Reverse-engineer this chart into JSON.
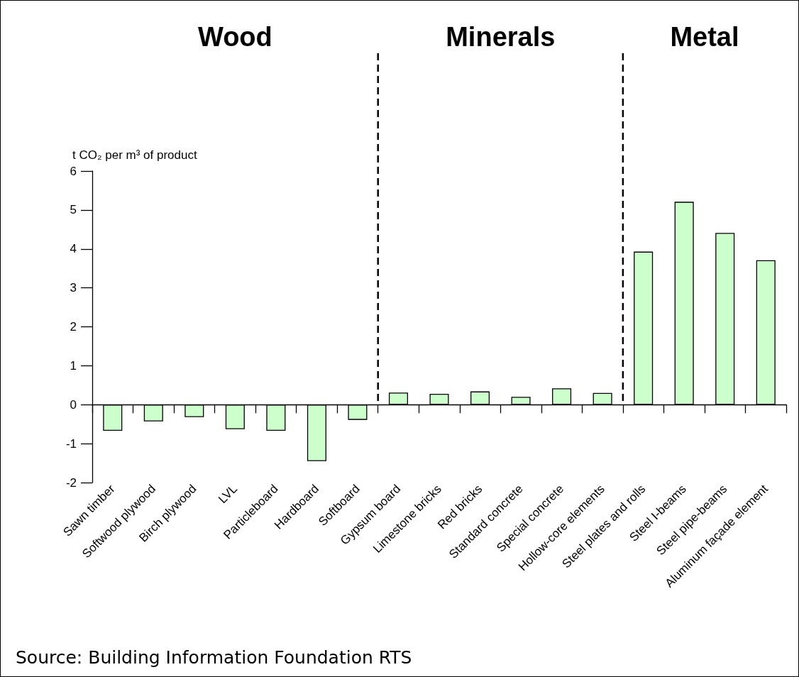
{
  "chart_data": {
    "type": "bar",
    "ylabel": "t CO₂ per m³ of product",
    "categories": [
      "Sawn timber",
      "Softwood plywood",
      "Birch plywood",
      "LVL",
      "Particleboard",
      "Hardboard",
      "Softboard",
      "Gypsum board",
      "Limestone bricks",
      "Red bricks",
      "Standard concrete",
      "Special concrete",
      "Hollow-core elements",
      "Steel plates and rolls",
      "Steel I-beams",
      "Steel pipe-beams",
      "Aluminum façade element"
    ],
    "values": [
      -0.67,
      -0.43,
      -0.32,
      -0.63,
      -0.67,
      -1.45,
      -0.39,
      0.31,
      0.28,
      0.34,
      0.2,
      0.42,
      0.3,
      3.93,
      5.21,
      4.41,
      3.71
    ],
    "color": "#ccffcc",
    "ylim": [
      -2,
      6
    ],
    "yticks": [
      -2,
      -1,
      0,
      1,
      2,
      3,
      4,
      5,
      6
    ],
    "grid": false,
    "annotations": [
      "Wood",
      "Minerals",
      "Metal",
      "Source: Building Information Foundation RTS"
    ]
  }
}
